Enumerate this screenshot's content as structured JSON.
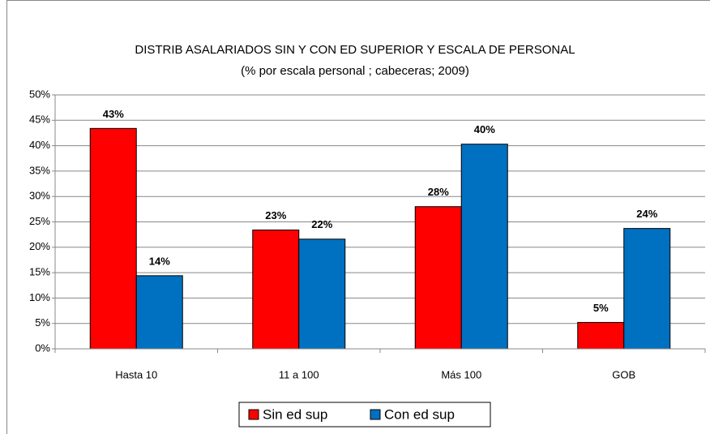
{
  "chart_data": {
    "type": "bar",
    "title": "DISTRIB ASALARIADOS SIN Y CON ED SUPERIOR Y ESCALA DE PERSONAL",
    "subtitle": "(% por escala personal ; cabeceras; 2009)",
    "categories": [
      "Hasta 10",
      "11 a 100",
      "Más 100",
      "GOB"
    ],
    "series": [
      {
        "name": "Sin ed sup",
        "color": "#ff0000",
        "label_color": "#e8141c",
        "values": [
          43.4,
          23.4,
          28.0,
          5.2
        ],
        "value_labels": [
          "43%",
          "23%",
          "28%",
          "5%"
        ]
      },
      {
        "name": "Con ed sup",
        "color": "#0070c0",
        "label_color": "#1f73c0",
        "values": [
          14.4,
          21.6,
          40.3,
          23.7
        ],
        "value_labels": [
          "14%",
          "22%",
          "40%",
          "24%"
        ]
      }
    ],
    "ylim": [
      0,
      50
    ],
    "yticks": [
      {
        "value": 0,
        "label": "0%"
      },
      {
        "value": 5,
        "label": "5%"
      },
      {
        "value": 10,
        "label": "10%"
      },
      {
        "value": 15,
        "label": "15%"
      },
      {
        "value": 20,
        "label": "20%"
      },
      {
        "value": 25,
        "label": "25%"
      },
      {
        "value": 30,
        "label": "30%"
      },
      {
        "value": 35,
        "label": "35%"
      },
      {
        "value": 40,
        "label": "40%"
      },
      {
        "value": 45,
        "label": "45%"
      },
      {
        "value": 50,
        "label": "50%"
      }
    ],
    "grid": true,
    "legend": "bottom"
  }
}
